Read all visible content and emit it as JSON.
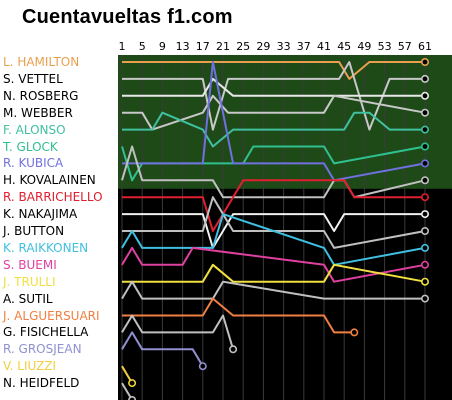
{
  "page_title": "Cuentavueltas f1.com",
  "chart_data": {
    "type": "line",
    "title": "Cuentavueltas f1.com",
    "x_ticks": [
      1,
      5,
      9,
      13,
      17,
      21,
      25,
      29,
      33,
      37,
      41,
      45,
      49,
      53,
      57,
      61
    ],
    "x_range": [
      1,
      61
    ],
    "y_label_order": "position 1 at top",
    "points_zone_positions": 8,
    "colors": {
      "background": "#000000",
      "points_zone": "#1e4a18",
      "grid": "#3a3a3a"
    },
    "series": [
      {
        "name": "L. HAMILTON",
        "color": "#e8a050",
        "x": [
          1,
          44,
          46,
          50,
          54,
          61
        ],
        "y": [
          1,
          1,
          2,
          1,
          1,
          1
        ]
      },
      {
        "name": "S. VETTEL",
        "color": "#c8c8c8",
        "x": [
          1,
          17,
          19,
          22,
          44,
          46,
          50,
          54,
          61
        ],
        "y": [
          2,
          2,
          5,
          2,
          2,
          1,
          5,
          2,
          2
        ]
      },
      {
        "name": "N. ROSBERG",
        "color": "#e8e8e8",
        "x": [
          1,
          17,
          19,
          23,
          45,
          49,
          53,
          57,
          61
        ],
        "y": [
          3,
          3,
          2,
          3,
          3,
          3,
          3,
          3,
          3
        ]
      },
      {
        "name": "M. WEBBER",
        "color": "#c8c8c8",
        "x": [
          1,
          5,
          7,
          17,
          19,
          22,
          41,
          43,
          61
        ],
        "y": [
          4,
          4,
          5,
          4,
          3,
          4,
          4,
          3,
          4
        ]
      },
      {
        "name": "F. ALONSO",
        "color": "#40c0a0",
        "x": [
          1,
          7,
          9,
          17,
          19,
          23,
          45,
          47,
          50,
          54,
          61
        ],
        "y": [
          5,
          5,
          4,
          5,
          6,
          5,
          5,
          4,
          4,
          5,
          5
        ]
      },
      {
        "name": "T. GLOCK",
        "color": "#30c090",
        "x": [
          1,
          3,
          5,
          25,
          27,
          41,
          43,
          61
        ],
        "y": [
          6,
          8,
          7,
          7,
          6,
          6,
          7,
          6
        ]
      },
      {
        "name": "R. KUBICA",
        "color": "#7070e0",
        "x": [
          1,
          17,
          19,
          23,
          41,
          43,
          61
        ],
        "y": [
          7,
          7,
          1,
          7,
          7,
          8,
          7
        ]
      },
      {
        "name": "H. KOVALAINEN",
        "color": "#c0c0c0",
        "x": [
          1,
          3,
          5,
          19,
          21,
          41,
          43,
          45,
          47,
          61
        ],
        "y": [
          8,
          6,
          8,
          8,
          9,
          9,
          8,
          8,
          9,
          8
        ]
      },
      {
        "name": "R. BARRICHELLO",
        "color": "#e02030",
        "x": [
          1,
          17,
          19,
          23,
          25,
          45,
          47,
          61
        ],
        "y": [
          9,
          9,
          11,
          9,
          8,
          8,
          9,
          9
        ]
      },
      {
        "name": "K. NAKAJIMA",
        "color": "#f0f0f0",
        "x": [
          1,
          17,
          19,
          23,
          41,
          43,
          45,
          47,
          61
        ],
        "y": [
          10,
          10,
          12,
          10,
          10,
          11,
          10,
          10,
          10
        ]
      },
      {
        "name": "J. BUTTON",
        "color": "#c0c0c0",
        "x": [
          1,
          17,
          19,
          23,
          41,
          43,
          61
        ],
        "y": [
          11,
          11,
          9,
          11,
          11,
          12,
          11
        ]
      },
      {
        "name": "K. RAIKKONEN",
        "color": "#40c0e0",
        "x": [
          1,
          3,
          5,
          19,
          21,
          41,
          43,
          61
        ],
        "y": [
          12,
          11,
          12,
          12,
          10,
          12,
          13,
          12
        ]
      },
      {
        "name": "S. BUEMI",
        "color": "#e040a0",
        "x": [
          1,
          3,
          5,
          13,
          15,
          41,
          43,
          61
        ],
        "y": [
          13,
          12,
          13,
          13,
          12,
          13,
          14,
          13
        ]
      },
      {
        "name": "J. TRULLI",
        "color": "#f0e040",
        "x": [
          1,
          17,
          19,
          23,
          41,
          43,
          61
        ],
        "y": [
          14,
          14,
          13,
          14,
          14,
          13,
          14
        ]
      },
      {
        "name": "A. SUTIL",
        "color": "#c0c0c0",
        "x": [
          1,
          3,
          5,
          19,
          21,
          41,
          43,
          61
        ],
        "y": [
          15,
          14,
          15,
          15,
          14,
          15,
          15,
          15
        ]
      },
      {
        "name": "J. ALGUERSUARI",
        "color": "#f08040",
        "x": [
          1,
          17,
          19,
          23,
          41,
          43,
          45,
          47
        ],
        "y": [
          16,
          16,
          15,
          16,
          16,
          17,
          17,
          17
        ]
      },
      {
        "name": "G. FISICHELLA",
        "color": "#c0c0c0",
        "x": [
          1,
          3,
          5,
          19,
          21,
          23
        ],
        "y": [
          17,
          16,
          17,
          17,
          16,
          18
        ]
      },
      {
        "name": "R. GROSJEAN",
        "color": "#9090d0",
        "x": [
          1,
          3,
          5,
          15,
          17
        ],
        "y": [
          18,
          17,
          18,
          18,
          19
        ]
      },
      {
        "name": "V. LIUZZI",
        "color": "#f0d040",
        "x": [
          1,
          3
        ],
        "y": [
          19,
          20
        ]
      },
      {
        "name": "N. HEIDFELD",
        "color": "#c0c0c0",
        "x": [
          1,
          3
        ],
        "y": [
          20,
          21
        ]
      }
    ]
  }
}
